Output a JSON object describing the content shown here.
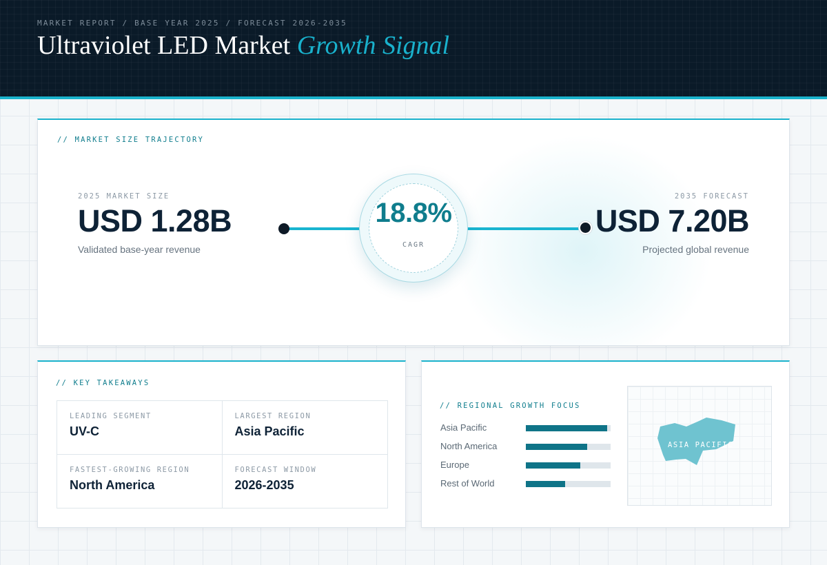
{
  "header": {
    "eyebrow": "MARKET REPORT / BASE YEAR 2025 / FORECAST 2026-2035",
    "title_main": "Ultraviolet LED Market",
    "title_accent": "Growth Signal"
  },
  "colors": {
    "accent": "#1ab2cc",
    "header_bg": "#0a1a28",
    "bar": "#0f7488",
    "text_dark": "#0e2236"
  },
  "trajectory": {
    "label": "// MARKET SIZE TRAJECTORY",
    "start": {
      "caption": "2025 MARKET SIZE",
      "value": "USD 1.28B",
      "sub": "Validated base-year revenue"
    },
    "cagr": {
      "value": "18.8%",
      "label": "CAGR"
    },
    "end": {
      "caption": "2035 FORECAST",
      "value": "USD 7.20B",
      "sub": "Projected global revenue"
    }
  },
  "takeaways": {
    "label": "// KEY TAKEAWAYS",
    "items": [
      {
        "label": "LEADING SEGMENT",
        "value": "UV-C"
      },
      {
        "label": "LARGEST REGION",
        "value": "Asia Pacific"
      },
      {
        "label": "FASTEST-GROWING REGION",
        "value": "North America"
      },
      {
        "label": "FORECAST WINDOW",
        "value": "2026-2035"
      }
    ]
  },
  "regional": {
    "label": "// REGIONAL GROWTH FOCUS",
    "regions": [
      {
        "name": "Asia Pacific",
        "fill": 0.96
      },
      {
        "name": "North America",
        "fill": 0.72
      },
      {
        "name": "Europe",
        "fill": 0.64
      },
      {
        "name": "Rest of World",
        "fill": 0.46
      }
    ],
    "map_label": "ASIA PACIFIC",
    "map_color": "#6fc3d0"
  }
}
